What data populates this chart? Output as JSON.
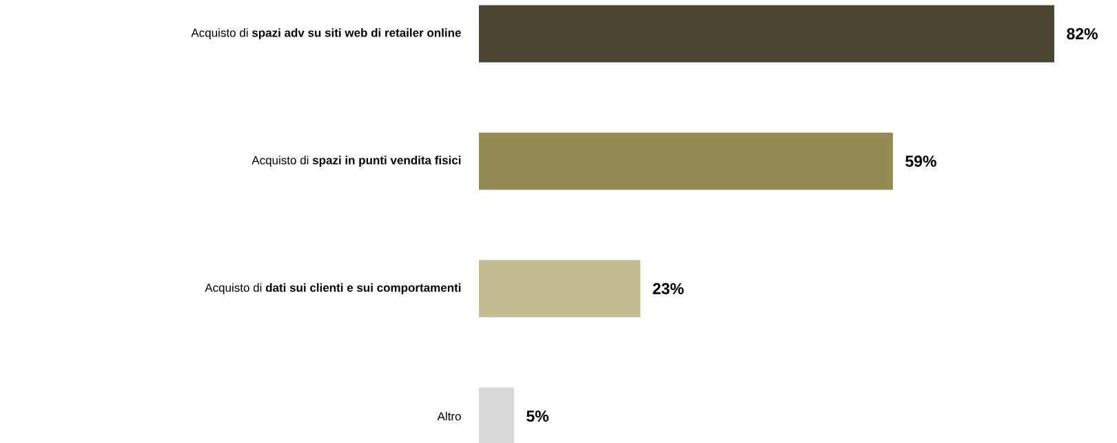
{
  "chart_data": {
    "type": "bar",
    "orientation": "horizontal",
    "categories": [
      "Acquisto di **spazi adv su siti web di retailer online**",
      "Acquisto di **spazi in punti vendita fisici**",
      "Acquisto di **dati sui clienti e sui comportamenti**",
      "Altro"
    ],
    "values": [
      82,
      59,
      23,
      5
    ],
    "colors": [
      "#4a4530",
      "#948b54",
      "#c4bd94",
      "#d9d9d9"
    ],
    "value_labels": [
      "82%",
      "59%",
      "23%",
      "5%"
    ]
  }
}
